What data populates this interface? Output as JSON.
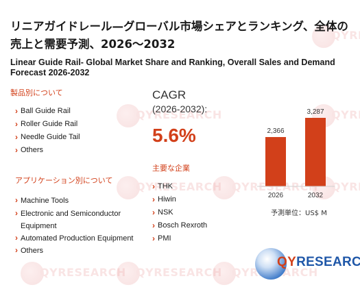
{
  "title_jp": "リニアガイドレール—グローバル市場シェアとランキング、全体の売上と需要予測、2026～2032",
  "title_en": "Linear Guide Rail- Global Market Share and Ranking, Overall Sales and Demand Forecast 2026-2032",
  "product_section": {
    "heading": "製品別について",
    "items": [
      "Ball Guide Rail",
      "Roller Guide Rail",
      "Needle Guide Tail",
      "Others"
    ]
  },
  "application_section": {
    "heading": "アプリケーション別について",
    "items": [
      "Machine Tools",
      "Electronic and Semiconductor Equipment",
      "Automated Production Equipment",
      "Others"
    ]
  },
  "cagr": {
    "label": "CAGR",
    "period": "(2026-2032):",
    "value": "5.6%"
  },
  "companies_section": {
    "heading": "主要な企業",
    "items": [
      "THK",
      "Hiwin",
      "NSK",
      "Bosch Rexroth",
      "PMI"
    ]
  },
  "chart_data": {
    "type": "bar",
    "categories": [
      "2026",
      "2032"
    ],
    "values": [
      2366,
      3287
    ],
    "value_labels": [
      "2,366",
      "3,287"
    ],
    "unit_label": "予測単位：US$ M",
    "bar_color": "#d2401a"
  },
  "watermark": "QYRESEARCH",
  "logo": {
    "q": "QY",
    "rest": "RESEARCH"
  }
}
